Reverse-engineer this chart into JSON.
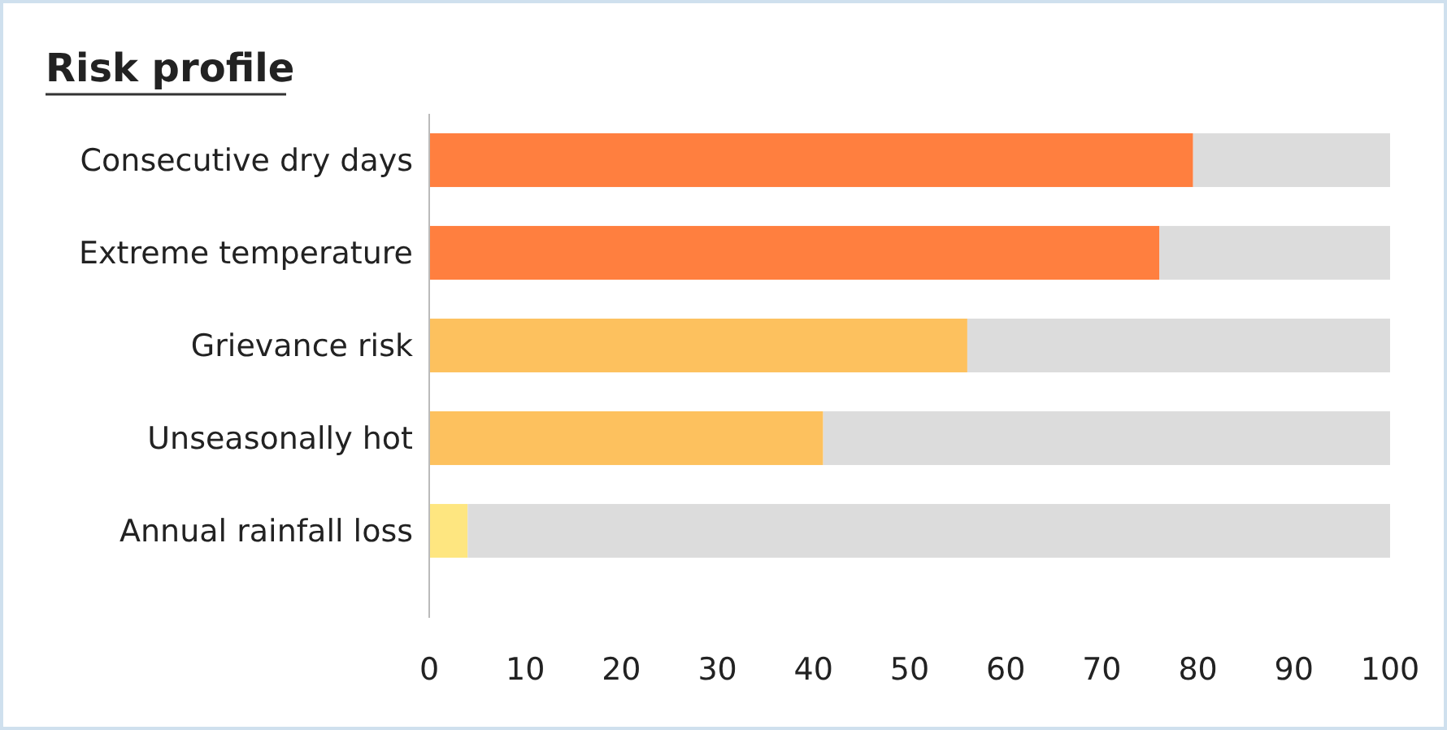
{
  "chart_data": {
    "type": "bar",
    "title": "Risk profile",
    "orientation": "horizontal",
    "stacked": true,
    "categories": [
      "Consecutive dry days",
      "Extreme temperature",
      "Grievance risk",
      "Unseasonally hot",
      "Annual rainfall loss"
    ],
    "series": [
      {
        "colors": [
          "#ff7f3f",
          "#ff7f3f",
          "#fdc15e",
          "#fdc15e",
          "#fee680"
        ],
        "values": [
          79.5,
          76,
          56,
          41,
          4
        ]
      },
      {
        "color": "#dcdcdc",
        "values": [
          20.5,
          24,
          44,
          59,
          96
        ]
      }
    ],
    "xlim": [
      0,
      100
    ],
    "xticks": [
      0,
      10,
      20,
      30,
      40,
      50,
      60,
      70,
      80,
      90,
      100
    ],
    "grid": false
  }
}
